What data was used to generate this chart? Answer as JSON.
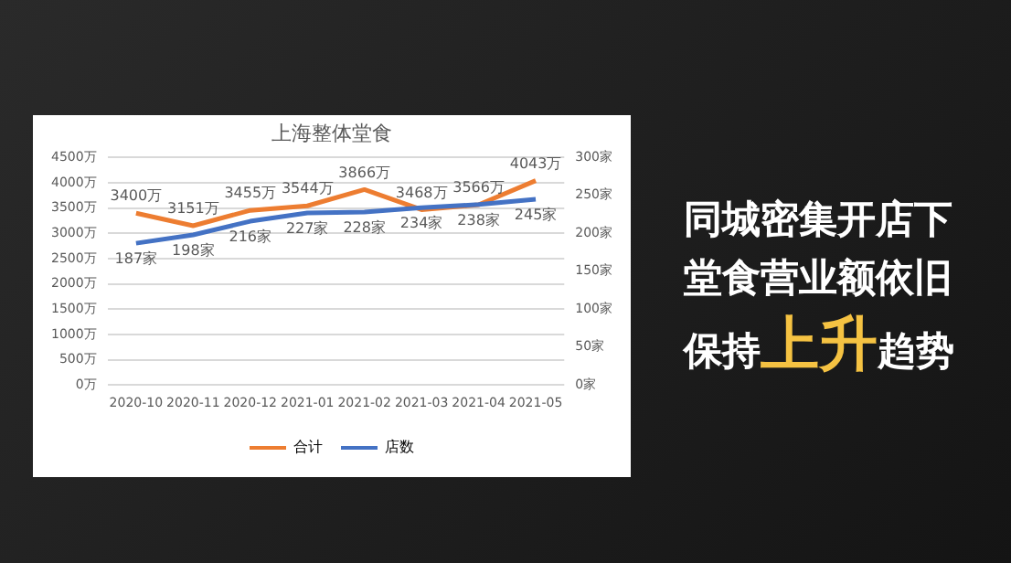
{
  "chart_data": {
    "type": "line",
    "title": "上海整体堂食",
    "annotations": [
      "同城密集开店下",
      "堂食营业额依旧",
      "保持",
      "上升",
      "趋势"
    ],
    "categories": [
      "2020-10",
      "2020-11",
      "2020-12",
      "2021-01",
      "2021-02",
      "2021-03",
      "2021-04",
      "2021-05"
    ],
    "series": [
      {
        "name": "合计",
        "color": "#ed7d31",
        "values": [
          3400,
          3151,
          3455,
          3544,
          3866,
          3468,
          3566,
          4043
        ],
        "value_labels": [
          "3400万",
          "3151万",
          "3455万",
          "3544万",
          "3866万",
          "3468万",
          "3566万",
          "4043万"
        ]
      },
      {
        "name": "店数",
        "color": "#4472c4",
        "axis": "y2",
        "values": [
          187,
          198,
          216,
          227,
          228,
          234,
          238,
          245
        ],
        "value_labels": [
          "187家",
          "198家",
          "216家",
          "227家",
          "228家",
          "234家",
          "238家",
          "245家"
        ]
      }
    ],
    "ylim": [
      0,
      4500
    ],
    "yticks": [
      {
        "value": 0,
        "label": "0万"
      },
      {
        "value": 500,
        "label": "500万"
      },
      {
        "value": 1000,
        "label": "1000万"
      },
      {
        "value": 1500,
        "label": "1500万"
      },
      {
        "value": 2000,
        "label": "2000万"
      },
      {
        "value": 2500,
        "label": "2500万"
      },
      {
        "value": 3000,
        "label": "3000万"
      },
      {
        "value": 3500,
        "label": "3500万"
      },
      {
        "value": 4000,
        "label": "4000万"
      },
      {
        "value": 4500,
        "label": "4500万"
      }
    ],
    "y2lim": [
      0,
      300
    ],
    "y2ticks": [
      {
        "value": 0,
        "label": "0家"
      },
      {
        "value": 50,
        "label": "50家"
      },
      {
        "value": 100,
        "label": "100家"
      },
      {
        "value": 150,
        "label": "150家"
      },
      {
        "value": 200,
        "label": "200家"
      },
      {
        "value": 250,
        "label": "250家"
      },
      {
        "value": 300,
        "label": "300家"
      }
    ],
    "grid": "y",
    "legend": "bottom",
    "marker": "none",
    "line_style": "solid"
  }
}
